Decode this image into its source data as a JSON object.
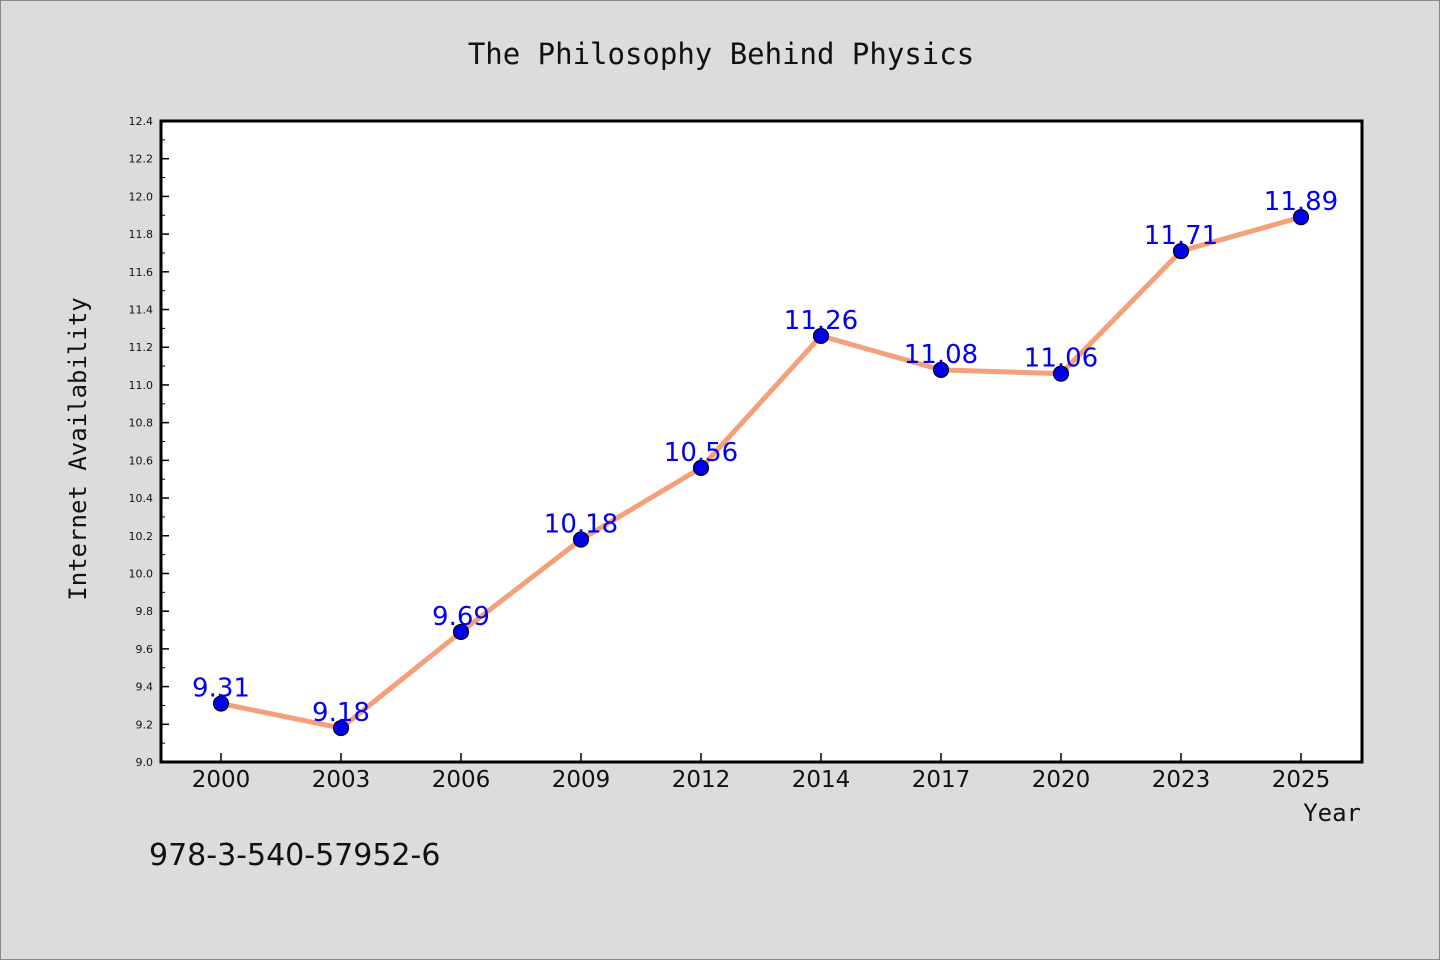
{
  "chart_data": {
    "type": "line",
    "title": "The Philosophy Behind Physics",
    "xlabel": "Year",
    "ylabel": "Internet Availability",
    "categories": [
      "2000",
      "2003",
      "2006",
      "2009",
      "2012",
      "2014",
      "2017",
      "2020",
      "2023",
      "2025"
    ],
    "series": [
      {
        "values": [
          9.31,
          9.18,
          9.69,
          10.18,
          10.56,
          11.26,
          11.08,
          11.06,
          11.71,
          11.89
        ],
        "line_color": "#f4a07a",
        "marker_color": "#0000ee"
      }
    ],
    "data_labels": [
      "9.31",
      "9.18",
      "9.69",
      "10.18",
      "10.56",
      "11.26",
      "11.08",
      "11.06",
      "11.71",
      "11.89"
    ],
    "ylim": [
      9.0,
      12.4
    ],
    "yticks": [
      "9.0",
      "9.2",
      "9.4",
      "9.6",
      "9.8",
      "10.0",
      "10.2",
      "10.4",
      "10.6",
      "10.8",
      "11.0",
      "11.2",
      "11.4",
      "11.6",
      "11.8",
      "12.0",
      "12.2",
      "12.4"
    ],
    "grid": false,
    "legend": "none",
    "annotation": "978-3-540-57952-6",
    "colors": {
      "background": "#dcdcdc",
      "plot_background": "#ffffff",
      "label_text": "#0000ee"
    }
  }
}
